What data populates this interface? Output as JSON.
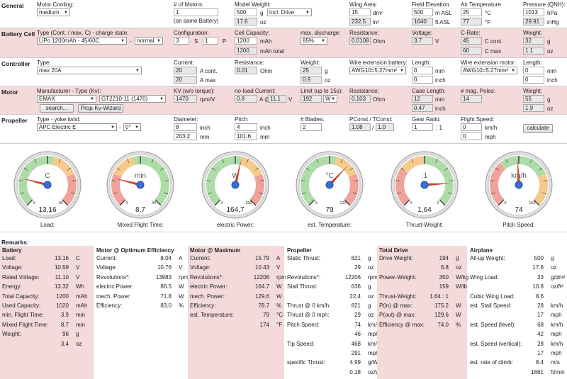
{
  "sections": {
    "general": "General",
    "battery": "Battery Cell",
    "controller": "Controller",
    "motor": "Motor",
    "propeller": "Propeller"
  },
  "general": {
    "motor_cooling_label": "Motor Cooling:",
    "motor_cooling": "medium",
    "num_motors_label": "# of Motors:",
    "num_motors": "1",
    "num_motors_note": "(on same Battery)",
    "model_weight_label": "Model Weight:",
    "model_weight": "500",
    "model_weight_unit": "g",
    "model_weight_mode": "incl. Drive",
    "model_weight_oz": "17.6",
    "model_weight_oz_unit": "oz",
    "wing_area_label": "Wing Area:",
    "wing_area": "15",
    "wing_area_unit": "dm²",
    "wing_area_in": "232.5",
    "wing_area_in_unit": "in²",
    "field_elev_label": "Field Elevation",
    "field_elev": "500",
    "field_elev_unit": "m ASL",
    "field_elev_ft": "1640",
    "field_elev_ft_unit": "ft ASL",
    "air_temp_label": "Air Temperature",
    "air_temp": "25",
    "air_temp_unit": "°C",
    "air_temp_f": "77",
    "air_temp_f_unit": "°F",
    "pressure_label": "Pressure (QNH):",
    "pressure": "1013",
    "pressure_unit": "hPa",
    "pressure_inhg": "29.91",
    "pressure_inhg_unit": "inHg"
  },
  "battery": {
    "type_label": "Type (Cont. / max. C) - charge state:",
    "type": "LiPo 1200mAh - 45/60C",
    "dash": "-",
    "charge": "normal",
    "config_label": "Configuration:",
    "config_s": "3",
    "s": "S",
    "config_p": "1",
    "p": "P",
    "capacity_label": "Cell Capacity:",
    "capacity": "1200",
    "capacity_unit": "mAh",
    "capacity_total": "1200",
    "capacity_total_unit": "mAh total",
    "max_discharge_label": "max. discharge:",
    "max_discharge": "85%",
    "resistance_label": "Resistance:",
    "resistance": "0.0108",
    "resistance_unit": "Ohm",
    "voltage_label": "Voltage:",
    "voltage": "3.7",
    "voltage_unit": "V",
    "crate_label": "C-Rate:",
    "crate_cont": "45",
    "crate_cont_unit": "C cont.",
    "crate_max": "60",
    "crate_max_unit": "C max",
    "weight_label": "Weight:",
    "weight": "32",
    "weight_unit": "g",
    "weight_oz": "1.1",
    "weight_oz_unit": "oz"
  },
  "controller": {
    "type_label": "Type:",
    "type": "max 20A",
    "current_label": "Current:",
    "current_cont": "20",
    "current_cont_unit": "A cont.",
    "current_max": "20",
    "current_max_unit": "A max",
    "resistance_label": "Resistance:",
    "resistance": "0.01",
    "resistance_unit": "Ohm",
    "weight_label": "Weight:",
    "weight": "25",
    "weight_unit": "g",
    "weight_oz": "0.9",
    "weight_oz_unit": "oz",
    "wire_batt_label": "Wire extension battery:",
    "wire_batt": "AWG10=5.27mm²",
    "length1_label": "Length:",
    "length1": "0",
    "length1_unit": "mm",
    "length1_in": "0",
    "length1_in_unit": "inch",
    "wire_motor_label": "Wire extension motor:",
    "wire_motor": "AWG10=5.27mm²",
    "length2_label": "Length:",
    "length2": "0",
    "length2_unit": "mm",
    "length2_in": "0",
    "length2_in_unit": "inch"
  },
  "motor": {
    "manuf_label": "Manufacturer - Type (Kv):",
    "manuf": "EMAX",
    "model": "GT2210-11 (1470)",
    "search": "search...",
    "prop_kv": "Prop-Kv-Wizard",
    "kv_label": "KV (w/o torque):",
    "kv": "1470",
    "kv_unit": "rpm/V",
    "noload_label": "no-load Current:",
    "noload": "0.8",
    "noload_at": "A @",
    "noload_v": "11.1",
    "noload_v_unit": "V",
    "limit_label": "Limit (up to 15s):",
    "limit": "192",
    "limit_unit": "W",
    "resistance_label": "Resistance:",
    "resistance": "0.103",
    "resistance_unit": "Ohm",
    "case_label": "Case Length:",
    "case": "12",
    "case_unit": "mm",
    "case_in": "0.47",
    "case_in_unit": "inch",
    "poles_label": "# mag. Poles:",
    "poles": "14",
    "weight_label": "Weight:",
    "weight": "55",
    "weight_unit": "g",
    "weight_oz": "1.9",
    "weight_oz_unit": "oz"
  },
  "propeller": {
    "type_label": "Type - yoke twist:",
    "type": "APC Electric E",
    "twist": "0°",
    "dash": "-",
    "diameter_label": "Diameter:",
    "diameter": "8",
    "diameter_unit": "inch",
    "diameter_mm": "203.2",
    "diameter_mm_unit": "mm",
    "pitch_label": "Pitch:",
    "pitch": "4",
    "pitch_unit": "inch",
    "pitch_mm": "101.6",
    "pitch_mm_unit": "mm",
    "blades_label": "# Blades:",
    "blades": "2",
    "pconst_label": "PConst / TConst:",
    "pconst": "1.08",
    "slash": "/",
    "tconst": "1.0",
    "gear_label": "Gear Ratio:",
    "gear": "1",
    "gear_sep": ": 1",
    "flight_speed_label": "Flight Speed:",
    "flight_speed": "0",
    "flight_speed_unit": "km/h",
    "flight_speed_mph": "0",
    "flight_speed_mph_unit": "mph",
    "calculate": "calculate"
  },
  "gauges": [
    {
      "caption": "Load:",
      "value": "13,16",
      "unit": "C",
      "min": "0",
      "max": "60",
      "level": 0.22
    },
    {
      "caption": "Mixed Flight Time:",
      "value": "8,7",
      "unit": "min",
      "min": "0",
      "max": "40",
      "level": 0.22
    },
    {
      "caption": "electric Power:",
      "value": "164,7",
      "unit": "W",
      "min": "0",
      "max": "300",
      "level": 0.55
    },
    {
      "caption": "est. Temperature:",
      "value": "79",
      "unit": "°C",
      "min": "0",
      "max": "120",
      "level": 0.66
    },
    {
      "caption": "Thrust-Weight:",
      "value": "1,64",
      "unit": ":1",
      "min": "0",
      "max": "2",
      "level": 0.82
    },
    {
      "caption": "Pitch Speed:",
      "value": "74",
      "unit": "km/h",
      "min": "0",
      "max": "150",
      "level": 0.49
    }
  ],
  "remarks_title": "Remarks:",
  "columns": [
    {
      "title": "Battery",
      "rows": [
        [
          "Load:",
          "13.16",
          "C"
        ],
        [
          "Voltage:",
          "10.59",
          "V"
        ],
        [
          "Rated Voltage:",
          "11.10",
          "V"
        ],
        [
          "Energy:",
          "13.32",
          "Wh"
        ],
        [
          "Total Capacity:",
          "1200",
          "mAh"
        ],
        [
          "Used Capacity:",
          "1020",
          "mAh"
        ],
        [
          "min. Flight Time:",
          "3.9",
          "min"
        ],
        [
          "Mixed Flight Time:",
          "8.7",
          "min"
        ],
        [
          "Weight:",
          "96",
          "g"
        ],
        [
          "",
          "3.4",
          "oz"
        ]
      ]
    },
    {
      "title": "Motor @ Optimum Efficiency",
      "rows": [
        [
          "Current:",
          "8.04",
          "A"
        ],
        [
          "Voltage:",
          "10.76",
          "V"
        ],
        [
          "Revolutions*:",
          "13983",
          "rpm"
        ],
        [
          "electric Power:",
          "86.5",
          "W"
        ],
        [
          "mech. Power:",
          "71.8",
          "W"
        ],
        [
          "Efficiency:",
          "83.0",
          "%"
        ]
      ]
    },
    {
      "title": "Motor @ Maximum",
      "rows": [
        [
          "Current:",
          "15.79",
          "A"
        ],
        [
          "Voltage:",
          "10.43",
          "V"
        ],
        [
          "Revolutions*:",
          "12206",
          "rpm"
        ],
        [
          "electric Power:",
          "164.7",
          "W"
        ],
        [
          "mech. Power:",
          "129.6",
          "W"
        ],
        [
          "Efficiency:",
          "78.7",
          "%"
        ],
        [
          "est. Temperature:",
          "79",
          "°C"
        ],
        [
          "",
          "174",
          "°F"
        ]
      ]
    },
    {
      "title": "Propeller",
      "rows": [
        [
          "Static Thrust:",
          "821",
          "g"
        ],
        [
          "",
          "29",
          "oz"
        ],
        [
          "Revolutions*:",
          "12206",
          "rpm"
        ],
        [
          "Stall Thrust:",
          "636",
          "g"
        ],
        [
          "",
          "22.4",
          "oz"
        ],
        [
          "Thrust @ 0 km/h:",
          "821",
          "g"
        ],
        [
          "Thrust @ 0 mph:",
          "29",
          "oz"
        ],
        [
          "Pitch Speed:",
          "74",
          "km/h"
        ],
        [
          "",
          "46",
          "mph"
        ],
        [
          "Tip Speed:",
          "468",
          "km/h"
        ],
        [
          "",
          "291",
          "mph"
        ],
        [
          "specific Thrust:",
          "4.99",
          "g/W"
        ],
        [
          "",
          "0.18",
          "oz/W"
        ]
      ]
    },
    {
      "title": "Total Drive",
      "rows": [
        [
          "Drive Weight:",
          "194",
          "g"
        ],
        [
          "",
          "6.8",
          "oz"
        ],
        [
          "Power-Weight:",
          "350",
          "W/kg"
        ],
        [
          "",
          "159",
          "W/lb"
        ],
        [
          "Thrust-Weight:",
          "1.64 : 1",
          ""
        ],
        [
          "P(in) @ max:",
          "175.2",
          "W"
        ],
        [
          "P(out) @ max:",
          "129.6",
          "W"
        ],
        [
          "Efficiency @ max:",
          "74.0",
          "%"
        ]
      ]
    },
    {
      "title": "Airplane",
      "rows": [
        [
          "All-up Weight:",
          "500",
          "g"
        ],
        [
          "",
          "17.6",
          "oz"
        ],
        [
          "Wing Load:",
          "33",
          "g/dm²"
        ],
        [
          "",
          "10.8",
          "oz/ft²"
        ],
        [
          "Cubic Wing Load:",
          "8.6",
          ""
        ],
        [
          "est. Stall Speed:",
          "28",
          "km/h"
        ],
        [
          "",
          "17",
          "mph"
        ],
        [
          "est. Speed (level):",
          "68",
          "km/h"
        ],
        [
          "",
          "42",
          "mph"
        ],
        [
          "est. Speed (vertical):",
          "28",
          "km/h"
        ],
        [
          "",
          "17",
          "mph"
        ],
        [
          "est. rate of climb:",
          "8.4",
          "m/s"
        ],
        [
          "",
          "1661",
          "ft/min"
        ]
      ]
    }
  ]
}
